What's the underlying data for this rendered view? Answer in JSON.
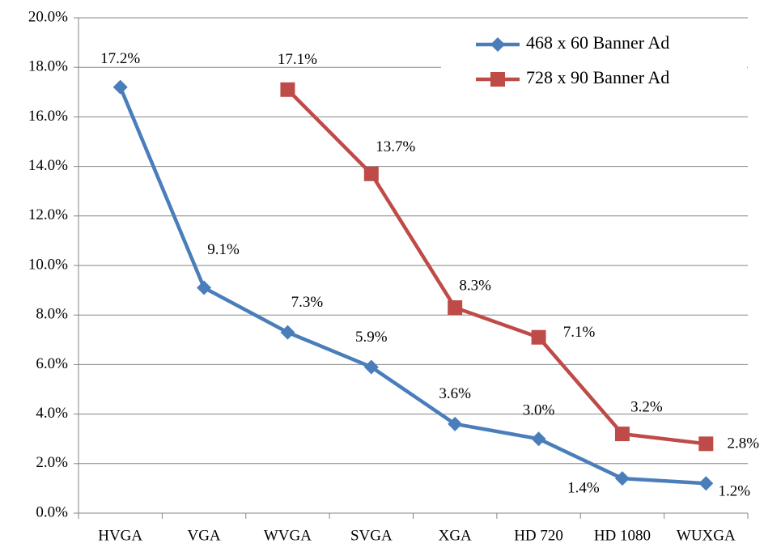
{
  "chart_data": {
    "type": "line",
    "categories": [
      "HVGA",
      "VGA",
      "WVGA",
      "SVGA",
      "XGA",
      "HD 720",
      "HD 1080",
      "WUXGA"
    ],
    "series": [
      {
        "name": "468 x 60 Banner Ad",
        "color": "#4a7ebb",
        "marker": "diamond",
        "values": [
          17.2,
          9.1,
          7.3,
          5.9,
          3.6,
          3.0,
          1.4,
          1.2
        ],
        "value_labels": [
          "17.2%",
          "9.1%",
          "7.3%",
          "5.9%",
          "3.6%",
          "3.0%",
          "1.4%",
          "1.2%"
        ]
      },
      {
        "name": "728 x 90 Banner Ad",
        "color": "#be4b48",
        "marker": "square",
        "values": [
          null,
          null,
          17.1,
          13.7,
          8.3,
          7.1,
          3.2,
          2.8
        ],
        "value_labels": [
          null,
          null,
          "17.1%",
          "13.7%",
          "8.3%",
          "7.1%",
          "3.2%",
          "2.8%"
        ]
      }
    ],
    "ylim": [
      0,
      20
    ],
    "yticks": [
      {
        "value": 0,
        "label": "0.0%"
      },
      {
        "value": 2,
        "label": "2.0%"
      },
      {
        "value": 4,
        "label": "4.0%"
      },
      {
        "value": 6,
        "label": "6.0%"
      },
      {
        "value": 8,
        "label": "8.0%"
      },
      {
        "value": 10,
        "label": "10.0%"
      },
      {
        "value": 12,
        "label": "12.0%"
      },
      {
        "value": 14,
        "label": "14.0%"
      },
      {
        "value": 16,
        "label": "16.0%"
      },
      {
        "value": 18,
        "label": "18.0%"
      },
      {
        "value": 20,
        "label": "20.0%"
      }
    ],
    "grid": true,
    "legend": "upper right"
  }
}
